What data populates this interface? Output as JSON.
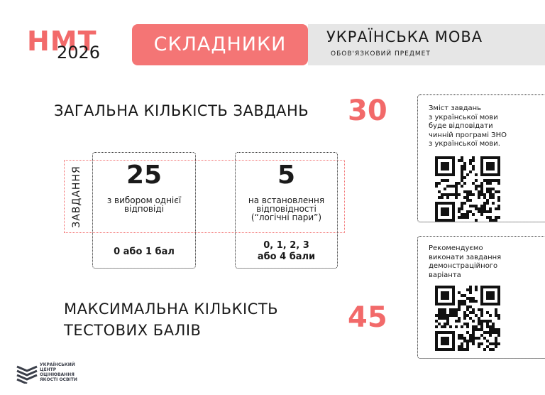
{
  "header": {
    "brand": "НМТ",
    "year": "2026",
    "section": "СКЛАДНИКИ",
    "subject": "УКРАЇНСЬКА МОВА",
    "subject_note": "ОБОВ'ЯЗКОВИЙ ПРЕДМЕТ"
  },
  "total": {
    "label": "ЗАГАЛЬНА КІЛЬКІСТЬ ЗАВДАНЬ",
    "value": 30
  },
  "tasks": {
    "label": "ЗАВДАННЯ",
    "groups": [
      {
        "count": 25,
        "description": [
          "з вибором однієї",
          "відповіді"
        ],
        "score": [
          "0 або 1 бал"
        ]
      },
      {
        "count": 5,
        "description": [
          "на встановлення",
          "відповідності",
          "(“логічні пари”)"
        ],
        "score": [
          "0, 1, 2, 3",
          "або 4 бали"
        ]
      }
    ]
  },
  "max_score": {
    "label": [
      "МАКСИМАЛЬНА КІЛЬКІСТЬ",
      "ТЕСТОВИХ БАЛІВ"
    ],
    "value": 45
  },
  "notes": [
    {
      "text": [
        "Зміст завдань",
        "з української мови",
        "буде відповідати",
        "чинній програмі ЗНО",
        "з української мови."
      ]
    },
    {
      "text": [
        "Рекомендуємо",
        "виконати завдання",
        "демонстраційного",
        "варіанта"
      ]
    }
  ],
  "logo": {
    "text": [
      "УКРАЇНСЬКИЙ",
      "ЦЕНТР",
      "ОЦІНЮВАННЯ",
      "ЯКОСТІ ОСВІТИ"
    ]
  }
}
